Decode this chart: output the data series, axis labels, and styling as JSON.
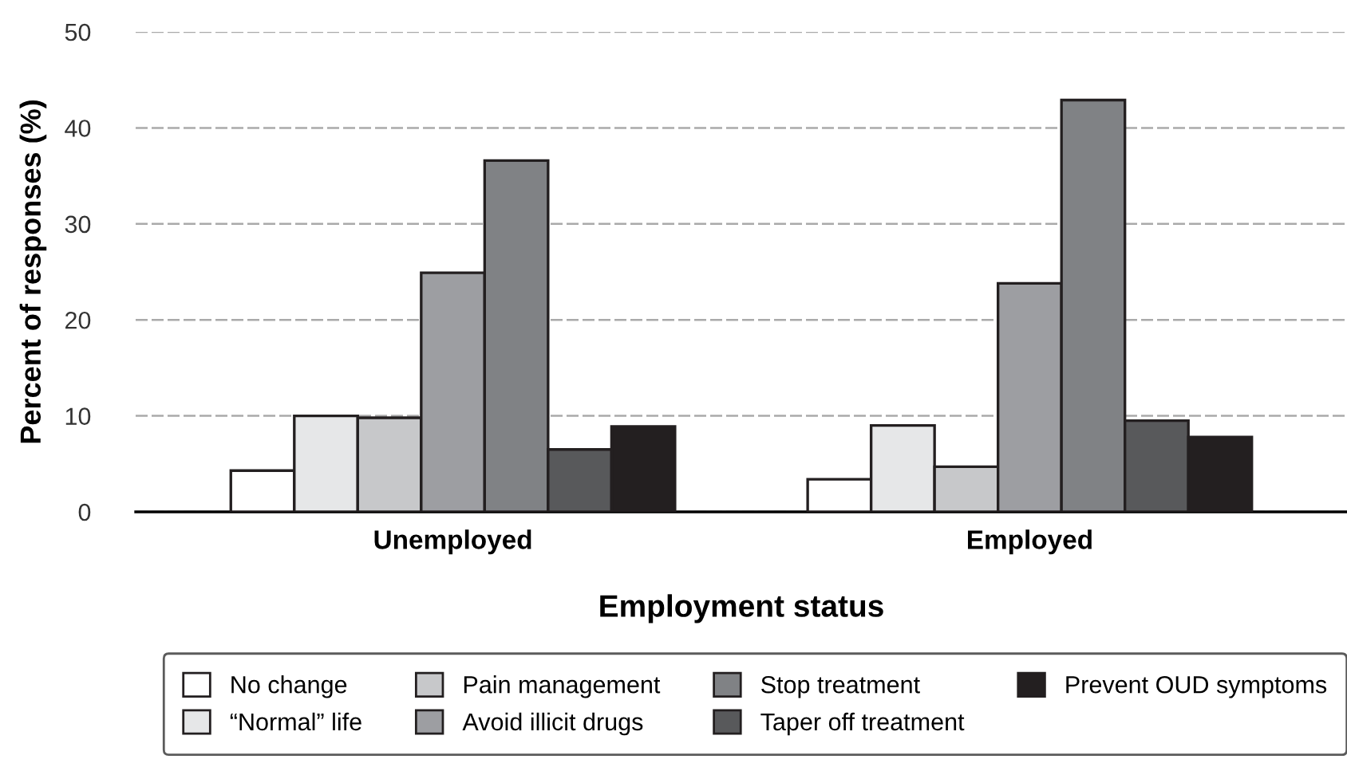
{
  "chart_data": {
    "type": "bar",
    "xlabel": "Employment status",
    "ylabel": "Percent of responses (%)",
    "categories": [
      "Unemployed",
      "Employed"
    ],
    "series": [
      {
        "name": "No change",
        "color": "#ffffff",
        "values": [
          4.3,
          3.4
        ]
      },
      {
        "name": "“Normal” life",
        "color": "#e6e7e8",
        "values": [
          10.0,
          9.0
        ]
      },
      {
        "name": "Pain management",
        "color": "#c7c8ca",
        "values": [
          9.8,
          4.7
        ]
      },
      {
        "name": "Avoid illicit drugs",
        "color": "#9d9ea2",
        "values": [
          24.9,
          23.8
        ]
      },
      {
        "name": "Stop treatment",
        "color": "#808285",
        "values": [
          36.6,
          42.9
        ]
      },
      {
        "name": "Taper off treatment",
        "color": "#58595b",
        "values": [
          6.5,
          9.5
        ]
      },
      {
        "name": "Prevent OUD symptoms",
        "color": "#231f20",
        "values": [
          8.9,
          7.8
        ]
      }
    ],
    "ylim": [
      0,
      50
    ],
    "yticks": [
      0,
      10,
      20,
      30,
      40,
      50
    ],
    "grid": "y",
    "legend": "bottom"
  }
}
